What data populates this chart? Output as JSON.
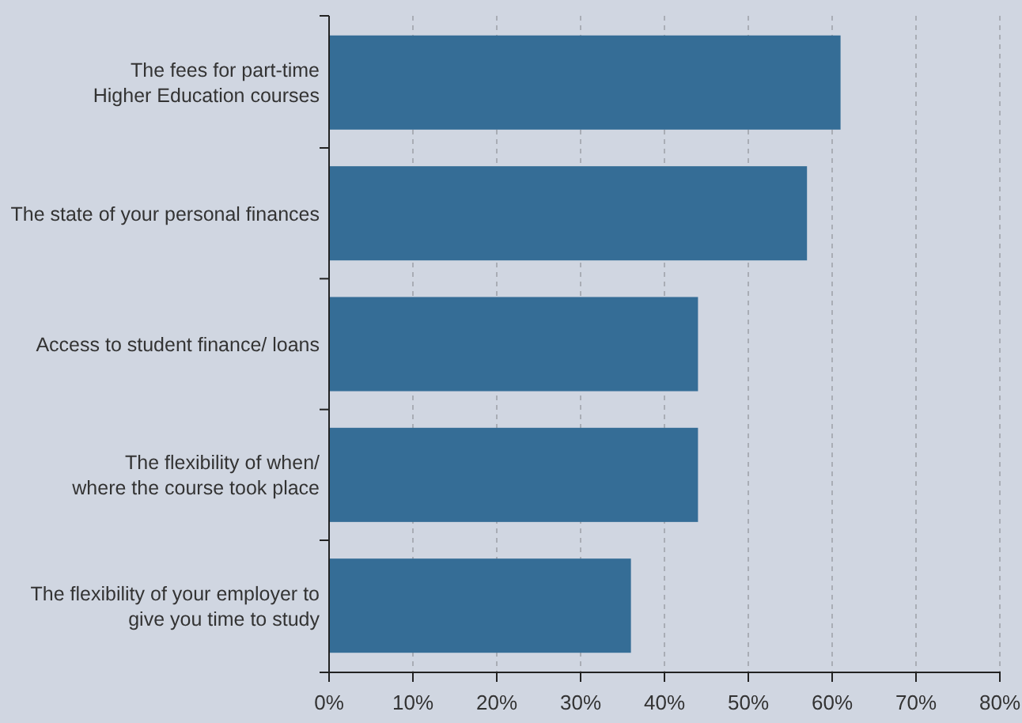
{
  "chart_data": {
    "type": "bar",
    "orientation": "horizontal",
    "categories": [
      "The fees for part-time\nHigher Education courses",
      "The state of your personal finances",
      "Access to student finance/ loans",
      "The flexibility of when/\nwhere the course took place",
      "The flexibility of your employer to\ngive you time to study"
    ],
    "values": [
      61,
      57,
      44,
      44,
      36
    ],
    "color": "#356d96",
    "xlim": [
      0,
      80
    ],
    "xticks": [
      {
        "value": 0,
        "label": "0%"
      },
      {
        "value": 10,
        "label": "10%"
      },
      {
        "value": 20,
        "label": "20%"
      },
      {
        "value": 30,
        "label": "30%"
      },
      {
        "value": 40,
        "label": "40%"
      },
      {
        "value": 50,
        "label": "50%"
      },
      {
        "value": 60,
        "label": "60%"
      },
      {
        "value": 70,
        "label": "70%"
      },
      {
        "value": 80,
        "label": "80%"
      }
    ],
    "grid": "x"
  }
}
